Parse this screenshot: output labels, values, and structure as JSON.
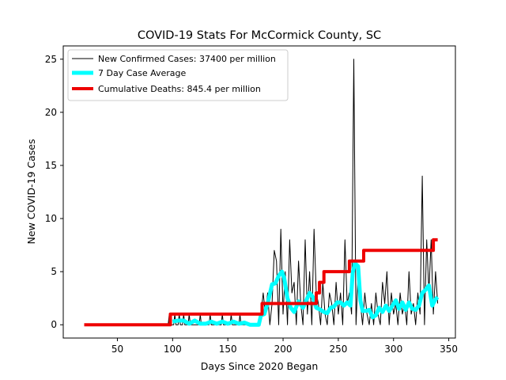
{
  "chart_data": {
    "type": "line",
    "title": "COVID-19 Stats For McCormick County, SC",
    "xlabel": "Days Since 2020 Began",
    "ylabel": "New COVID-19 Cases",
    "xlim": [
      1,
      356
    ],
    "ylim": [
      -1.25,
      26.25
    ],
    "xticks": [
      50,
      100,
      150,
      200,
      250,
      300,
      350
    ],
    "yticks": [
      0,
      5,
      10,
      15,
      20,
      25
    ],
    "grid": false,
    "legend_position": "top-left",
    "series": [
      {
        "name": "New Confirmed Cases: 37400 per million",
        "color": "#000000",
        "line_width": 1,
        "points": [
          [
            20,
            0
          ],
          [
            96,
            0
          ],
          [
            97,
            1
          ],
          [
            98,
            0
          ],
          [
            101,
            0
          ],
          [
            102,
            1
          ],
          [
            103,
            0
          ],
          [
            105,
            0
          ],
          [
            106,
            1
          ],
          [
            107,
            0
          ],
          [
            109,
            0
          ],
          [
            110,
            1
          ],
          [
            111,
            0
          ],
          [
            114,
            0
          ],
          [
            115,
            1
          ],
          [
            116,
            0
          ],
          [
            124,
            0
          ],
          [
            125,
            1
          ],
          [
            126,
            0
          ],
          [
            133,
            0
          ],
          [
            134,
            1
          ],
          [
            135,
            0
          ],
          [
            144,
            0
          ],
          [
            145,
            1
          ],
          [
            146,
            0
          ],
          [
            152,
            0
          ],
          [
            153,
            1
          ],
          [
            154,
            0
          ],
          [
            160,
            0
          ],
          [
            161,
            1
          ],
          [
            162,
            0
          ],
          [
            178,
            0
          ],
          [
            180,
            1
          ],
          [
            182,
            3
          ],
          [
            184,
            1
          ],
          [
            186,
            3
          ],
          [
            188,
            0
          ],
          [
            190,
            2
          ],
          [
            192,
            7
          ],
          [
            194,
            6
          ],
          [
            196,
            0
          ],
          [
            198,
            9
          ],
          [
            200,
            1
          ],
          [
            202,
            5
          ],
          [
            204,
            0
          ],
          [
            206,
            8
          ],
          [
            208,
            3
          ],
          [
            210,
            4
          ],
          [
            212,
            0
          ],
          [
            214,
            6
          ],
          [
            216,
            2
          ],
          [
            218,
            0
          ],
          [
            220,
            8
          ],
          [
            222,
            1
          ],
          [
            224,
            5
          ],
          [
            226,
            0
          ],
          [
            228,
            9
          ],
          [
            230,
            3
          ],
          [
            232,
            2
          ],
          [
            234,
            0
          ],
          [
            236,
            4
          ],
          [
            238,
            1
          ],
          [
            240,
            0
          ],
          [
            242,
            3
          ],
          [
            244,
            2
          ],
          [
            246,
            0
          ],
          [
            248,
            4
          ],
          [
            250,
            1
          ],
          [
            252,
            3
          ],
          [
            254,
            0
          ],
          [
            256,
            8
          ],
          [
            258,
            2
          ],
          [
            260,
            3
          ],
          [
            262,
            1
          ],
          [
            264,
            25
          ],
          [
            266,
            0
          ],
          [
            268,
            5
          ],
          [
            270,
            2
          ],
          [
            272,
            0
          ],
          [
            274,
            3
          ],
          [
            276,
            1
          ],
          [
            278,
            0
          ],
          [
            280,
            2
          ],
          [
            282,
            0
          ],
          [
            284,
            3
          ],
          [
            286,
            1
          ],
          [
            288,
            0
          ],
          [
            290,
            4
          ],
          [
            292,
            2
          ],
          [
            294,
            5
          ],
          [
            296,
            0
          ],
          [
            298,
            3
          ],
          [
            300,
            1
          ],
          [
            302,
            2
          ],
          [
            304,
            0
          ],
          [
            306,
            3
          ],
          [
            308,
            1
          ],
          [
            310,
            2
          ],
          [
            312,
            0
          ],
          [
            314,
            5
          ],
          [
            316,
            1
          ],
          [
            318,
            2
          ],
          [
            320,
            0
          ],
          [
            322,
            3
          ],
          [
            324,
            1
          ],
          [
            326,
            14
          ],
          [
            328,
            0
          ],
          [
            330,
            8
          ],
          [
            332,
            3
          ],
          [
            334,
            8
          ],
          [
            336,
            1
          ],
          [
            338,
            5
          ],
          [
            340,
            2
          ]
        ]
      },
      {
        "name": "7 Day Case Average",
        "color": "#00ffff",
        "line_width": 5,
        "points": [
          [
            100,
            0.3
          ],
          [
            105,
            0.4
          ],
          [
            110,
            0.4
          ],
          [
            115,
            0.1
          ],
          [
            120,
            0.4
          ],
          [
            125,
            0.1
          ],
          [
            130,
            0.1
          ],
          [
            135,
            0.3
          ],
          [
            140,
            0.1
          ],
          [
            145,
            0.3
          ],
          [
            150,
            0.1
          ],
          [
            155,
            0.3
          ],
          [
            160,
            0.1
          ],
          [
            165,
            0.2
          ],
          [
            170,
            0.0
          ],
          [
            175,
            0.0
          ],
          [
            178,
            0.0
          ],
          [
            180,
            0.9
          ],
          [
            183,
            1.0
          ],
          [
            186,
            2.0
          ],
          [
            190,
            3.8
          ],
          [
            193,
            3.9
          ],
          [
            196,
            4.6
          ],
          [
            199,
            5.0
          ],
          [
            201,
            4.4
          ],
          [
            204,
            2.5
          ],
          [
            207,
            1.6
          ],
          [
            210,
            1.2
          ],
          [
            214,
            2.2
          ],
          [
            218,
            1.6
          ],
          [
            221,
            2.3
          ],
          [
            224,
            3.0
          ],
          [
            227,
            2.6
          ],
          [
            230,
            1.6
          ],
          [
            234,
            1.4
          ],
          [
            237,
            1.2
          ],
          [
            240,
            1.1
          ],
          [
            243,
            1.6
          ],
          [
            246,
            1.7
          ],
          [
            249,
            2.1
          ],
          [
            252,
            2.1
          ],
          [
            255,
            1.8
          ],
          [
            258,
            2.1
          ],
          [
            261,
            1.8
          ],
          [
            263,
            4.9
          ],
          [
            265,
            5.8
          ],
          [
            268,
            5.5
          ],
          [
            270,
            2.3
          ],
          [
            272,
            1.3
          ],
          [
            275,
            1.3
          ],
          [
            278,
            1.4
          ],
          [
            281,
            0.7
          ],
          [
            284,
            0.9
          ],
          [
            287,
            1.6
          ],
          [
            290,
            1.2
          ],
          [
            293,
            1.8
          ],
          [
            296,
            1.3
          ],
          [
            299,
            1.8
          ],
          [
            302,
            2.3
          ],
          [
            305,
            1.5
          ],
          [
            308,
            2.1
          ],
          [
            311,
            1.4
          ],
          [
            314,
            2.1
          ],
          [
            317,
            1.5
          ],
          [
            320,
            1.4
          ],
          [
            323,
            1.8
          ],
          [
            326,
            3.0
          ],
          [
            329,
            3.3
          ],
          [
            332,
            3.7
          ],
          [
            335,
            1.8
          ],
          [
            338,
            2.4
          ],
          [
            340,
            2.6
          ]
        ]
      },
      {
        "name": "Cumulative Deaths: 845.4 per million",
        "color": "#ee0000",
        "line_width": 4,
        "points": [
          [
            20,
            0
          ],
          [
            98,
            0
          ],
          [
            98,
            1
          ],
          [
            181,
            1
          ],
          [
            181,
            2
          ],
          [
            230,
            2
          ],
          [
            230,
            3
          ],
          [
            233,
            3
          ],
          [
            233,
            4
          ],
          [
            237,
            4
          ],
          [
            237,
            5
          ],
          [
            260,
            5
          ],
          [
            260,
            6
          ],
          [
            273,
            6
          ],
          [
            273,
            7
          ],
          [
            336,
            7
          ],
          [
            336,
            8
          ],
          [
            340,
            8
          ]
        ]
      }
    ]
  }
}
